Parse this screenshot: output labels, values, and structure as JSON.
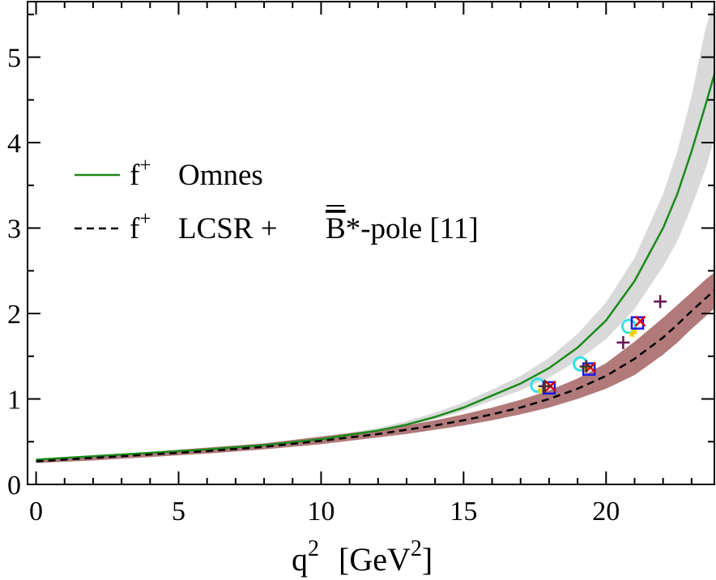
{
  "chart_data": {
    "type": "line",
    "title": "",
    "xlabel": "q",
    "xlabel_sup": "2",
    "xlabel_units_open": "[GeV",
    "xlabel_units_sup": "2",
    "xlabel_units_close": "]",
    "ylabel": "",
    "xlim": [
      -0.3,
      23.8
    ],
    "ylim": [
      0,
      5.65
    ],
    "x_ticks": [
      0,
      5,
      10,
      15,
      20
    ],
    "y_ticks": [
      0,
      1,
      2,
      3,
      4,
      5
    ],
    "x_tick_labels": [
      "0",
      "5",
      "10",
      "15",
      "20"
    ],
    "y_tick_labels": [
      "0",
      "1",
      "2",
      "3",
      "4",
      "5"
    ],
    "legend": {
      "placement": "upper-left",
      "entries": [
        {
          "symbol": "f",
          "sup": "+",
          "label": "Omnes",
          "color": "#1a8a1a",
          "style": "solid"
        },
        {
          "symbol": "f",
          "sup": "+",
          "label_prefix": "LCSR + ",
          "overline": "B",
          "label_suffix": "*-pole [11]",
          "color": "#000000",
          "style": "dashed"
        }
      ]
    },
    "series": [
      {
        "name": "f+ Omnes",
        "color": "#1a8a1a",
        "style": "solid",
        "x": [
          0,
          2,
          4,
          6,
          8,
          10,
          12,
          13,
          14,
          15,
          16,
          17,
          18,
          19,
          20,
          21,
          22,
          22.5,
          23,
          23.5,
          23.8
        ],
        "y": [
          0.29,
          0.33,
          0.37,
          0.41,
          0.46,
          0.53,
          0.63,
          0.7,
          0.79,
          0.9,
          1.04,
          1.18,
          1.36,
          1.6,
          1.92,
          2.38,
          3.0,
          3.4,
          3.9,
          4.45,
          4.8
        ]
      },
      {
        "name": "f+ LCSR + B*-pole [11]",
        "color": "#000000",
        "style": "dashed",
        "x": [
          0,
          2,
          4,
          6,
          8,
          10,
          12,
          13,
          14,
          15,
          16,
          17,
          18,
          19,
          20,
          21,
          22,
          22.5,
          23,
          23.5,
          23.8
        ],
        "y": [
          0.27,
          0.31,
          0.35,
          0.39,
          0.44,
          0.51,
          0.59,
          0.64,
          0.69,
          0.75,
          0.82,
          0.9,
          1.0,
          1.12,
          1.27,
          1.47,
          1.72,
          1.87,
          2.03,
          2.18,
          2.27
        ]
      }
    ],
    "bands": [
      {
        "name": "Omnes uncertainty band",
        "color": "#d9d9d9",
        "x": [
          0,
          2,
          4,
          6,
          8,
          10,
          12,
          13,
          14,
          15,
          16,
          17,
          18,
          19,
          20,
          21,
          22,
          22.5,
          23,
          23.5,
          23.8
        ],
        "lower": [
          0.28,
          0.32,
          0.36,
          0.4,
          0.45,
          0.52,
          0.61,
          0.68,
          0.76,
          0.86,
          0.98,
          1.1,
          1.25,
          1.45,
          1.7,
          2.05,
          2.55,
          2.85,
          3.25,
          3.7,
          4.05
        ],
        "upper": [
          0.3,
          0.34,
          0.38,
          0.43,
          0.48,
          0.55,
          0.66,
          0.74,
          0.84,
          0.96,
          1.11,
          1.27,
          1.48,
          1.76,
          2.13,
          2.65,
          3.4,
          3.9,
          4.55,
          5.35,
          5.65
        ]
      },
      {
        "name": "LCSR + B*-pole uncertainty band",
        "color": "#ad7272",
        "x": [
          0,
          2,
          4,
          6,
          8,
          10,
          12,
          13,
          14,
          15,
          16,
          17,
          18,
          19,
          20,
          21,
          22,
          22.5,
          23,
          23.5,
          23.8
        ],
        "lower": [
          0.25,
          0.28,
          0.32,
          0.36,
          0.41,
          0.47,
          0.55,
          0.59,
          0.64,
          0.69,
          0.75,
          0.82,
          0.9,
          1.0,
          1.12,
          1.28,
          1.52,
          1.66,
          1.82,
          1.97,
          2.06
        ],
        "upper": [
          0.3,
          0.34,
          0.38,
          0.43,
          0.48,
          0.56,
          0.64,
          0.69,
          0.75,
          0.82,
          0.9,
          0.99,
          1.1,
          1.24,
          1.42,
          1.67,
          1.95,
          2.1,
          2.25,
          2.4,
          2.48
        ]
      }
    ],
    "markers": [
      {
        "name": "circles",
        "shape": "circle",
        "color": "#35e0e8",
        "x": [
          17.6,
          19.1,
          20.8
        ],
        "y": [
          1.16,
          1.41,
          1.85
        ]
      },
      {
        "name": "yellow points",
        "shape": "star",
        "color": "#f0d000",
        "x": [
          17.75,
          19.25,
          20.95
        ],
        "y": [
          1.14,
          1.39,
          1.8
        ]
      },
      {
        "name": "squares",
        "shape": "square",
        "color": "#1a1ae6",
        "x": [
          18.0,
          19.4,
          21.1
        ],
        "y": [
          1.13,
          1.35,
          1.89
        ]
      },
      {
        "name": "crosses",
        "shape": "x",
        "color": "#dd0000",
        "x": [
          18.05,
          19.45,
          21.2
        ],
        "y": [
          1.15,
          1.37,
          1.91
        ]
      },
      {
        "name": "dark pluses small",
        "shape": "plus",
        "color": "#4a3030",
        "x": [
          17.85,
          19.3
        ],
        "y": [
          1.15,
          1.38
        ]
      },
      {
        "name": "plum pluses",
        "shape": "plus",
        "color": "#6a1050",
        "x": [
          20.6,
          21.9
        ],
        "y": [
          1.66,
          2.14
        ]
      }
    ]
  }
}
